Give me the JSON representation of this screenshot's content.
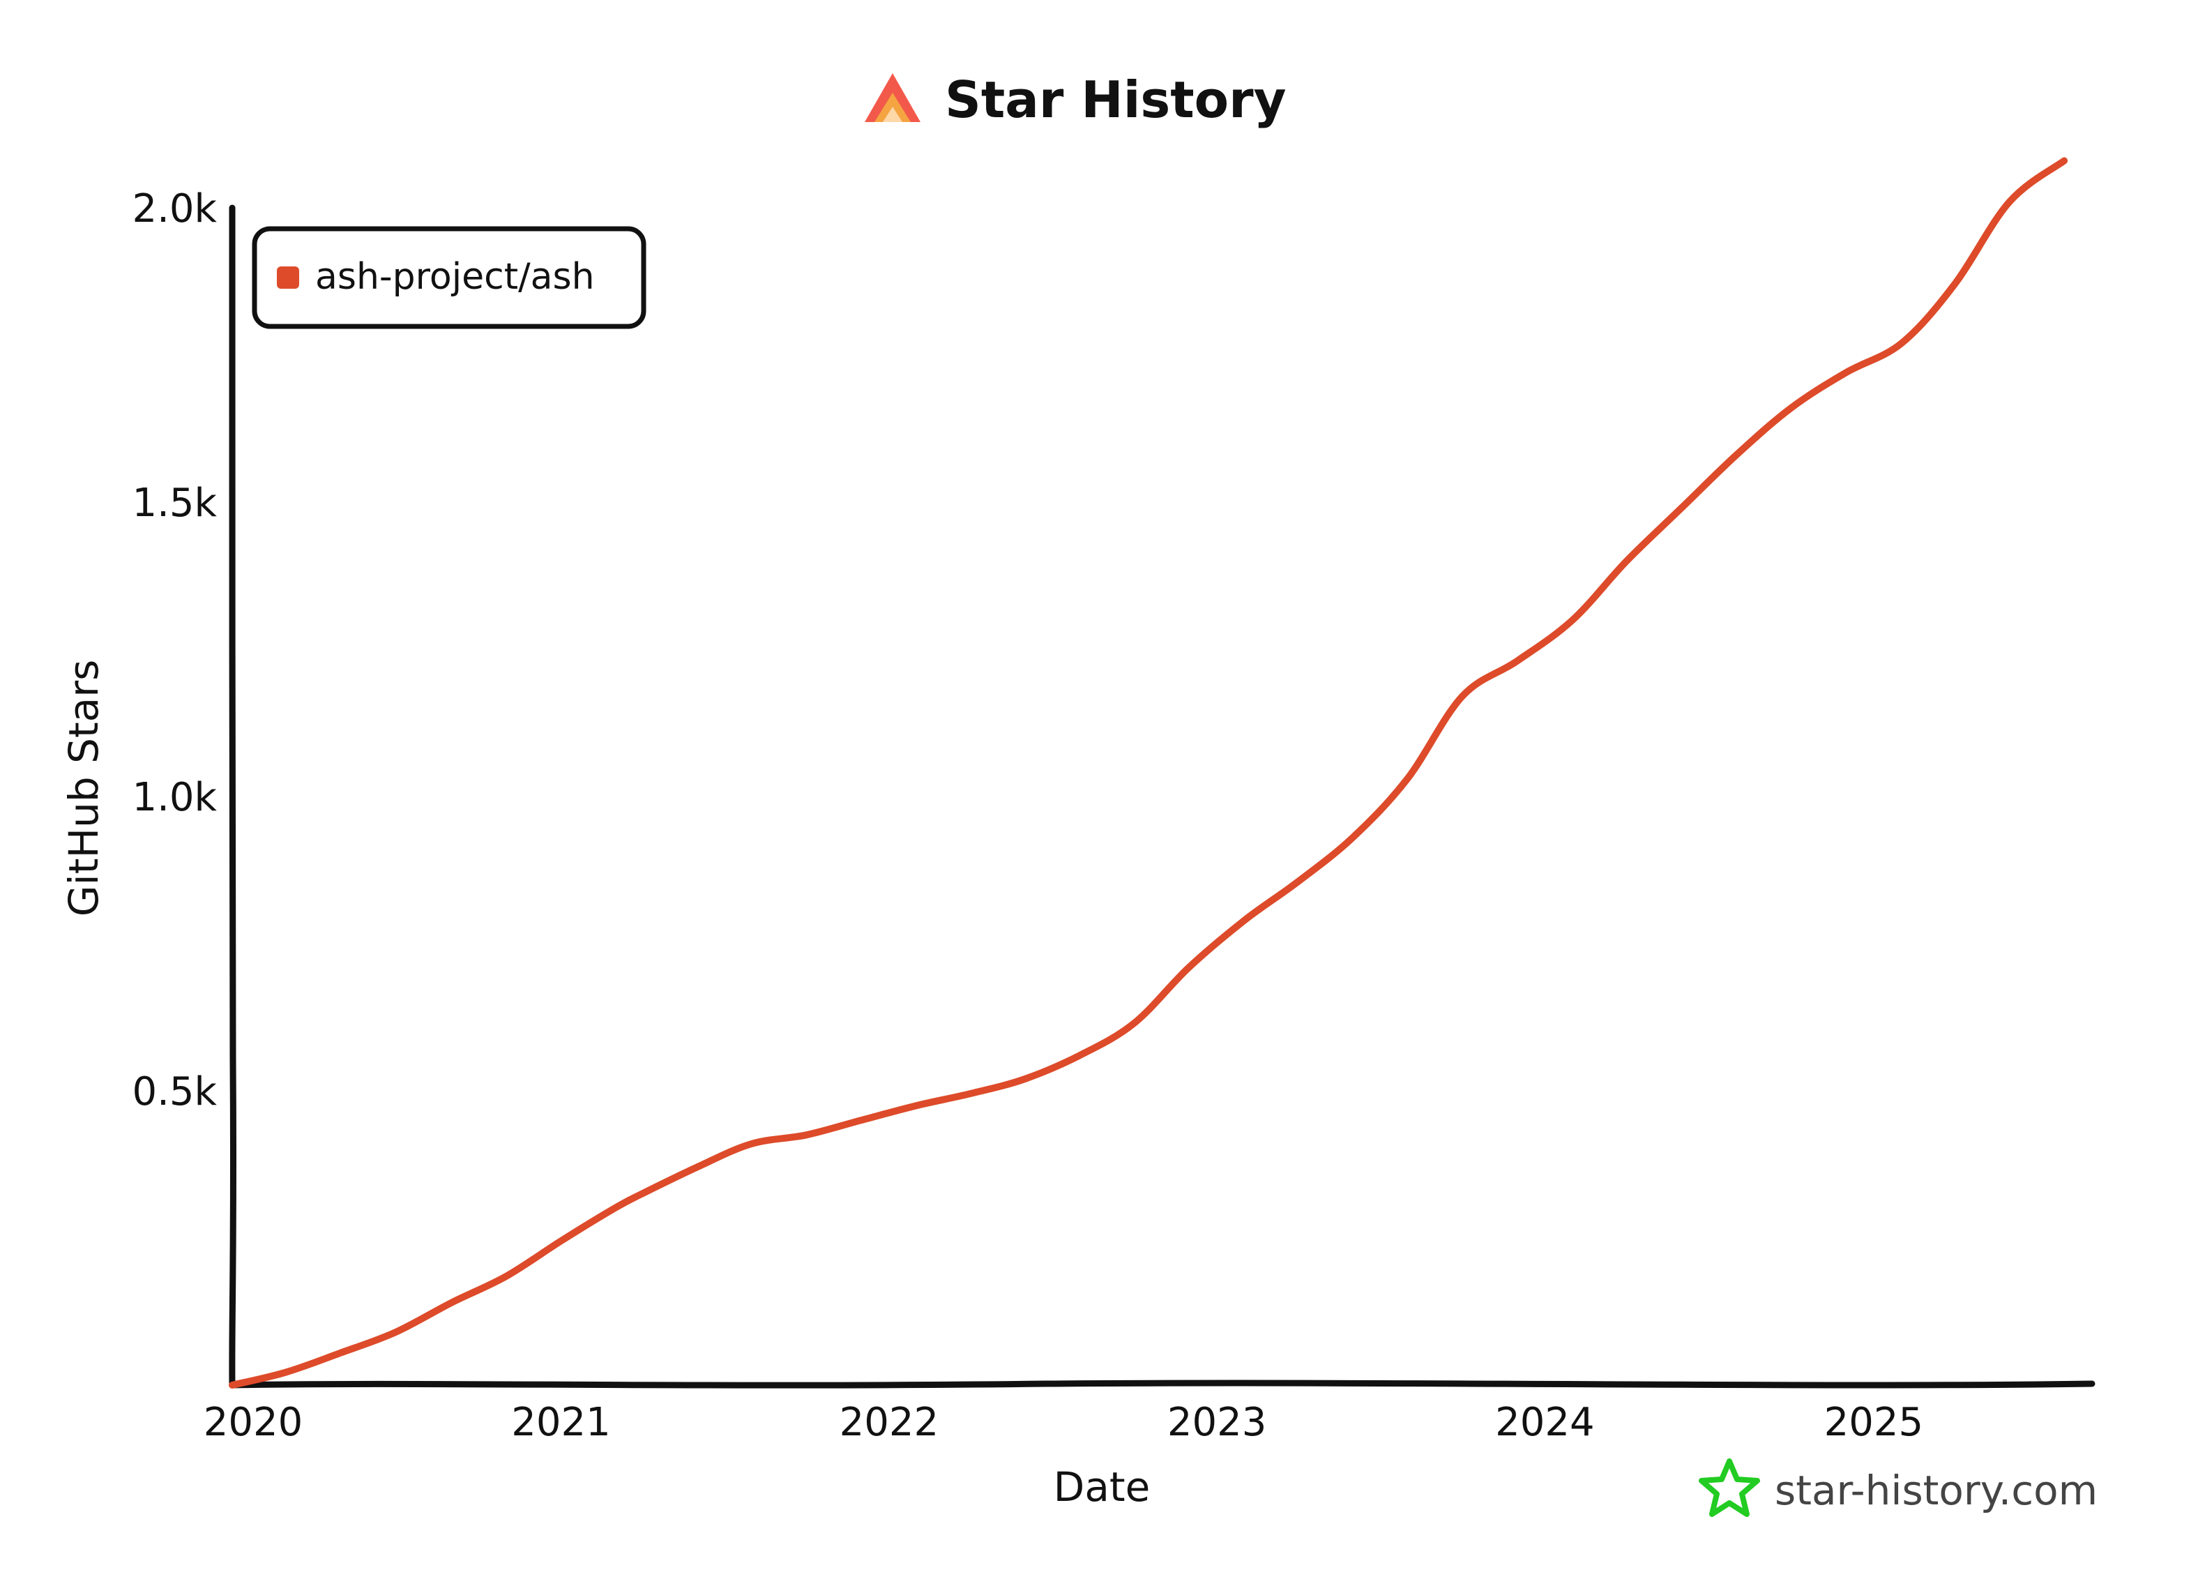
{
  "header": {
    "title": "Star History",
    "logo_icon": "star-history-logo-icon"
  },
  "footer": {
    "text": "star-history.com",
    "icon": "star-outline-icon",
    "icon_color": "#22cc22"
  },
  "colors": {
    "series": "#dd4b2a",
    "axis": "#111111",
    "logo_a": "#f2594b",
    "logo_b": "#f5a442"
  },
  "chart_data": {
    "type": "line",
    "title": "Star History",
    "xlabel": "Date",
    "ylabel": "GitHub Stars",
    "x_ticks": [
      "2020",
      "2021",
      "2022",
      "2023",
      "2024",
      "2025"
    ],
    "y_ticks": [
      "0.5k",
      "1.0k",
      "1.5k",
      "2.0k"
    ],
    "y_tick_values": [
      500,
      1000,
      1500,
      2000
    ],
    "xlim": [
      "2020-01-01",
      "2025-09-01"
    ],
    "ylim": [
      0,
      2000
    ],
    "grid": false,
    "legend": "top-left",
    "series": [
      {
        "name": "ash-project/ash",
        "color": "#dd4b2a",
        "points": [
          [
            "2020-01-01",
            0
          ],
          [
            "2020-03-01",
            22
          ],
          [
            "2020-05-01",
            55
          ],
          [
            "2020-07-01",
            90
          ],
          [
            "2020-09-01",
            140
          ],
          [
            "2020-11-01",
            185
          ],
          [
            "2021-01-01",
            245
          ],
          [
            "2021-03-01",
            300
          ],
          [
            "2021-04-01",
            325
          ],
          [
            "2021-06-01",
            370
          ],
          [
            "2021-08-01",
            410
          ],
          [
            "2021-10-01",
            425
          ],
          [
            "2021-12-01",
            450
          ],
          [
            "2022-02-01",
            475
          ],
          [
            "2022-04-01",
            495
          ],
          [
            "2022-06-01",
            520
          ],
          [
            "2022-08-01",
            560
          ],
          [
            "2022-10-01",
            615
          ],
          [
            "2022-12-01",
            710
          ],
          [
            "2023-02-01",
            790
          ],
          [
            "2023-04-01",
            855
          ],
          [
            "2023-06-01",
            930
          ],
          [
            "2023-08-01",
            1030
          ],
          [
            "2023-10-01",
            1170
          ],
          [
            "2023-12-01",
            1230
          ],
          [
            "2024-02-01",
            1300
          ],
          [
            "2024-04-01",
            1400
          ],
          [
            "2024-06-01",
            1490
          ],
          [
            "2024-08-01",
            1580
          ],
          [
            "2024-10-01",
            1660
          ],
          [
            "2024-12-01",
            1720
          ],
          [
            "2025-02-01",
            1770
          ],
          [
            "2025-04-01",
            1870
          ],
          [
            "2025-06-01",
            2010
          ],
          [
            "2025-08-01",
            2080
          ]
        ]
      }
    ]
  }
}
